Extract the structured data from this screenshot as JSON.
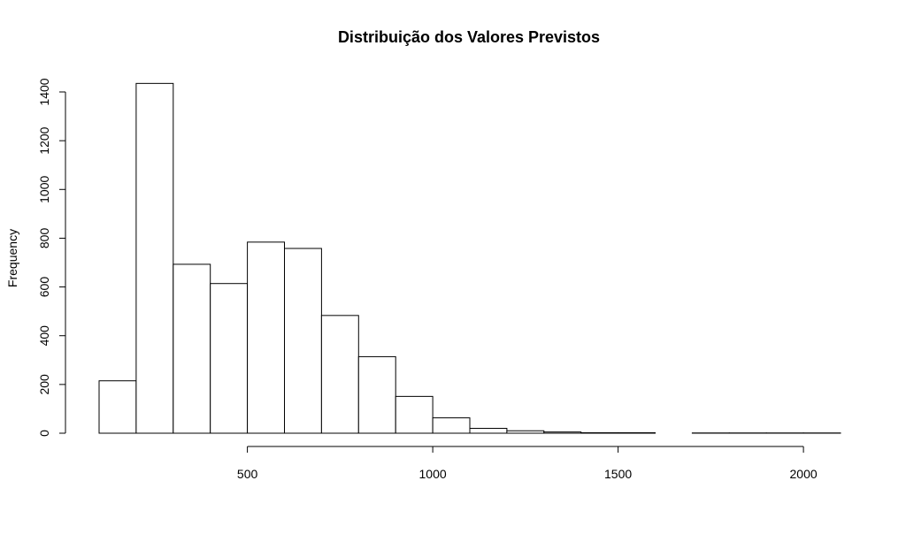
{
  "chart_data": {
    "type": "bar",
    "title": "Distribuição dos Valores Previstos",
    "xlabel": "",
    "ylabel": "Frequency",
    "bin_edges": [
      100,
      200,
      300,
      400,
      500,
      600,
      700,
      800,
      900,
      1000,
      1100,
      1200,
      1300,
      1400,
      1500,
      1600,
      1700,
      1800,
      1900,
      2000,
      2100
    ],
    "values": [
      215,
      1435,
      693,
      614,
      784,
      758,
      483,
      314,
      151,
      63,
      20,
      10,
      5,
      2,
      2,
      0,
      1,
      1,
      1,
      1
    ],
    "x_ticks": [
      500,
      1000,
      1500,
      2000
    ],
    "y_ticks": [
      0,
      200,
      400,
      600,
      800,
      1000,
      1200,
      1400
    ],
    "xlim": [
      100,
      2100
    ],
    "ylim": [
      0,
      1400
    ],
    "grid": false,
    "colors": {
      "bar_fill": "#ffffff",
      "bar_stroke": "#000000"
    }
  }
}
